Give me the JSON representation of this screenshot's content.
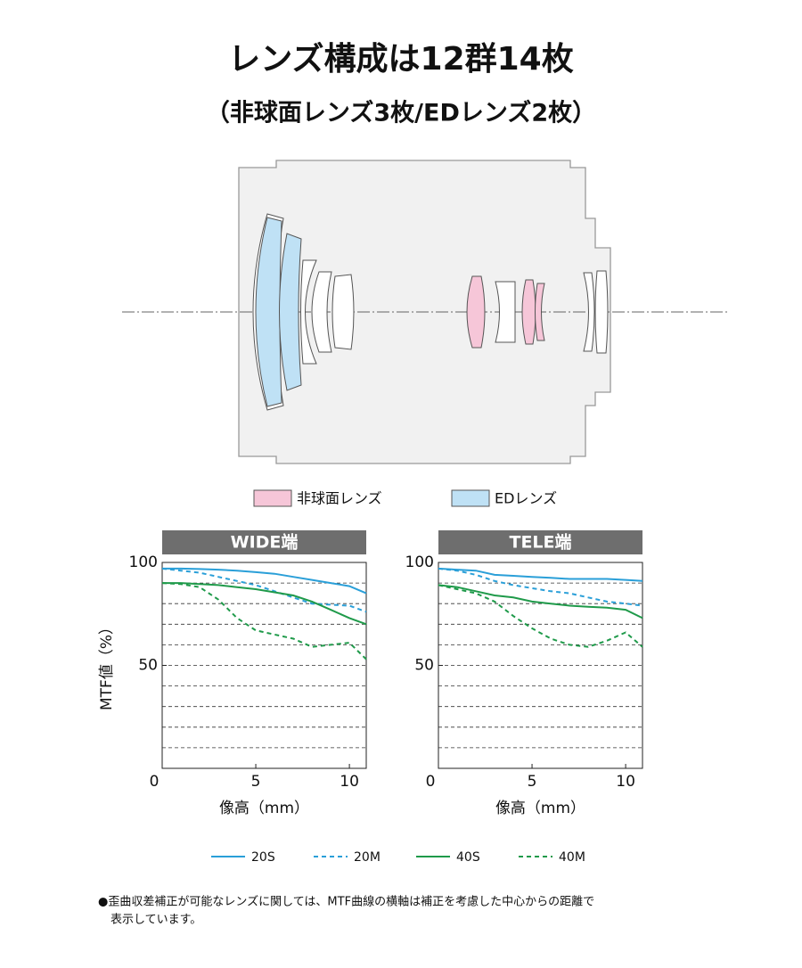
{
  "title": "レンズ構成は12群14枚",
  "subtitle": "（非球面レンズ3枚/EDレンズ2枚）",
  "lens_legend": [
    {
      "label": "非球面レンズ",
      "color": "#f6c6d8"
    },
    {
      "label": "EDレンズ",
      "color": "#bfe1f5"
    }
  ],
  "footnote": [
    "●歪曲収差補正が可能なレンズに関しては、MTF曲線の横軸は補正を考慮した中心からの距離で",
    "表示しています。"
  ],
  "chart_data": [
    {
      "type": "line",
      "title": "WIDE端",
      "xlabel": "像高（mm）",
      "ylabel": "MTF値（%）",
      "x": [
        0,
        1,
        2,
        3,
        4,
        5,
        6,
        7,
        8,
        9,
        10,
        10.9
      ],
      "xlim": [
        0,
        10.9
      ],
      "ylim": [
        0,
        100
      ],
      "xticks": [
        0,
        5,
        10
      ],
      "yticks": [
        50,
        100
      ],
      "ygrid": [
        10,
        20,
        30,
        40,
        50,
        60,
        70,
        80,
        90
      ],
      "series": [
        {
          "name": "20S",
          "color": "#2a9fd8",
          "dashed": false,
          "values": [
            97,
            97,
            96.8,
            96.5,
            96,
            95.3,
            94.5,
            93,
            91.5,
            90,
            88.5,
            85
          ]
        },
        {
          "name": "20M",
          "color": "#2a9fd8",
          "dashed": true,
          "values": [
            97,
            96,
            95,
            93,
            91,
            89,
            86,
            83,
            80,
            79.5,
            79,
            76
          ]
        },
        {
          "name": "40S",
          "color": "#1f9a4a",
          "dashed": false,
          "values": [
            90,
            90,
            89.5,
            89,
            88,
            87,
            85.5,
            84,
            81,
            77,
            73,
            70
          ]
        },
        {
          "name": "40M",
          "color": "#1f9a4a",
          "dashed": true,
          "values": [
            90,
            89.5,
            88,
            82,
            73,
            67,
            65,
            63,
            59,
            60,
            61,
            53
          ]
        }
      ]
    },
    {
      "type": "line",
      "title": "TELE端",
      "xlabel": "像高（mm）",
      "x": [
        0,
        1,
        2,
        3,
        4,
        5,
        6,
        7,
        8,
        9,
        10,
        10.9
      ],
      "xlim": [
        0,
        10.9
      ],
      "ylim": [
        0,
        100
      ],
      "xticks": [
        0,
        5,
        10
      ],
      "yticks": [
        50,
        100
      ],
      "ygrid": [
        10,
        20,
        30,
        40,
        50,
        60,
        70,
        80,
        90
      ],
      "series": [
        {
          "color": "#2a9fd8",
          "dashed": false,
          "values": [
            97,
            96.5,
            96,
            94,
            93.5,
            93,
            92.5,
            92,
            92,
            92,
            91.5,
            91
          ]
        },
        {
          "color": "#2a9fd8",
          "dashed": true,
          "values": [
            97,
            96,
            94,
            91,
            89,
            87.5,
            86,
            85,
            83,
            81,
            80,
            79
          ]
        },
        {
          "color": "#1f9a4a",
          "dashed": false,
          "values": [
            89,
            88,
            86,
            84,
            83,
            81,
            80,
            79,
            78.5,
            78,
            77,
            73
          ]
        },
        {
          "color": "#1f9a4a",
          "dashed": true,
          "values": [
            89,
            87,
            85,
            81,
            74,
            68,
            63,
            60,
            59,
            62,
            66,
            59
          ]
        }
      ]
    }
  ]
}
